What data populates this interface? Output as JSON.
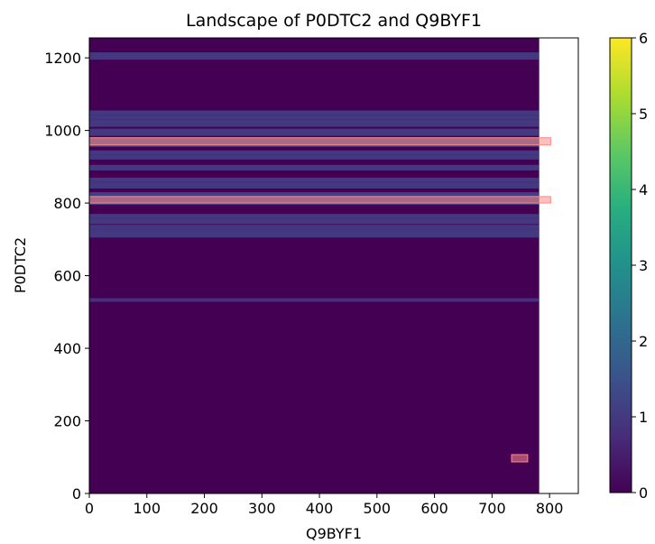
{
  "chart_data": {
    "type": "heatmap",
    "title": "Landscape of P0DTC2 and  Q9BYF1",
    "xlabel": "Q9BYF1",
    "ylabel": "P0DTC2",
    "xlim": [
      0,
      850
    ],
    "ylim": [
      0,
      1255
    ],
    "x_ticks": [
      0,
      100,
      200,
      300,
      400,
      500,
      600,
      700,
      800
    ],
    "y_ticks": [
      0,
      200,
      400,
      600,
      800,
      1000,
      1200
    ],
    "grid": false,
    "colormap": "viridis",
    "colorbar": {
      "min": 0,
      "max": 6,
      "ticks": [
        0,
        1,
        2,
        3,
        4,
        5,
        6
      ]
    },
    "matrix_extent": {
      "x": [
        0,
        782
      ],
      "y": [
        0,
        1255
      ]
    },
    "background_value": 0,
    "bands": [
      {
        "y0": 1195,
        "y1": 1215,
        "value": 1
      },
      {
        "y0": 1010,
        "y1": 1055,
        "value": 1
      },
      {
        "y0": 985,
        "y1": 1005,
        "value": 1
      },
      {
        "y0": 955,
        "y1": 980,
        "value": 1.3
      },
      {
        "y0": 920,
        "y1": 945,
        "value": 1
      },
      {
        "y0": 890,
        "y1": 905,
        "value": 1
      },
      {
        "y0": 840,
        "y1": 870,
        "value": 1
      },
      {
        "y0": 795,
        "y1": 830,
        "value": 1.1
      },
      {
        "y0": 742,
        "y1": 770,
        "value": 1
      },
      {
        "y0": 705,
        "y1": 740,
        "value": 1
      },
      {
        "y0": 528,
        "y1": 538,
        "value": 0.8
      }
    ],
    "highlights": [
      {
        "x0": 0,
        "x1": 802,
        "y0": 960,
        "y1": 980
      },
      {
        "x0": 0,
        "x1": 802,
        "y0": 800,
        "y1": 818
      },
      {
        "x0": 734,
        "x1": 762,
        "y0": 87,
        "y1": 107
      }
    ],
    "highlight_color": "#ff8a8a"
  }
}
